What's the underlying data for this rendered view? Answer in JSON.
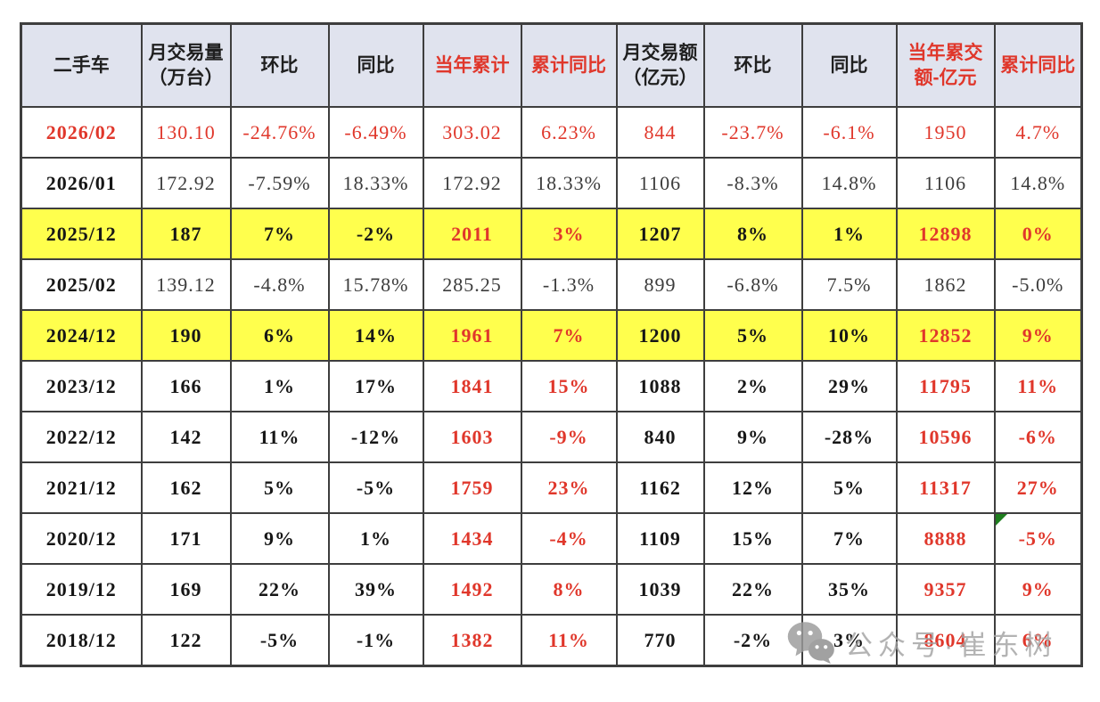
{
  "colors": {
    "red": "#e0372b",
    "highlight_yellow": "#ffff4d",
    "header_bg": "#e0e3ee",
    "border": "#3e3e3e",
    "marker_green": "#1e7e1e",
    "watermark_gray": "#a3a3a3"
  },
  "watermark": {
    "icon": "wechat-icon",
    "text": "公众号·崔东树"
  },
  "chart_data": {
    "type": "table",
    "columns": [
      "二手车",
      "月交易量\n（万台）",
      "环比",
      "同比",
      "当年累计",
      "累计同比",
      "月交易额\n（亿元）",
      "环比",
      "同比",
      "当年累交\n额-亿元",
      "累计同比"
    ],
    "red_header_indexes": [
      4,
      5,
      9,
      10
    ],
    "rows": [
      {
        "cells": [
          "2026/02",
          "130.10",
          "-24.76%",
          "-6.49%",
          "303.02",
          "6.23%",
          "844",
          "-23.7%",
          "-6.1%",
          "1950",
          "4.7%"
        ],
        "bg": "white",
        "bold": false,
        "red_cells": [
          0,
          1,
          2,
          3,
          4,
          5,
          6,
          7,
          8,
          9,
          10
        ]
      },
      {
        "cells": [
          "2026/01",
          "172.92",
          "-7.59%",
          "18.33%",
          "172.92",
          "18.33%",
          "1106",
          "-8.3%",
          "14.8%",
          "1106",
          "14.8%"
        ],
        "bg": "white",
        "bold": false,
        "red_cells": []
      },
      {
        "cells": [
          "2025/12",
          "187",
          "7%",
          "-2%",
          "2011",
          "3%",
          "1207",
          "8%",
          "1%",
          "12898",
          "0%"
        ],
        "bg": "yellow",
        "bold": true,
        "red_cells": [
          4,
          5,
          9,
          10
        ]
      },
      {
        "cells": [
          "2025/02",
          "139.12",
          "-4.8%",
          "15.78%",
          "285.25",
          "-1.3%",
          "899",
          "-6.8%",
          "7.5%",
          "1862",
          "-5.0%"
        ],
        "bg": "white",
        "bold": false,
        "red_cells": []
      },
      {
        "cells": [
          "2024/12",
          "190",
          "6%",
          "14%",
          "1961",
          "7%",
          "1200",
          "5%",
          "10%",
          "12852",
          "9%"
        ],
        "bg": "yellow",
        "bold": true,
        "red_cells": [
          4,
          5,
          9,
          10
        ]
      },
      {
        "cells": [
          "2023/12",
          "166",
          "1%",
          "17%",
          "1841",
          "15%",
          "1088",
          "2%",
          "29%",
          "11795",
          "11%"
        ],
        "bg": "white",
        "bold": true,
        "red_cells": [
          4,
          5,
          9,
          10
        ]
      },
      {
        "cells": [
          "2022/12",
          "142",
          "11%",
          "-12%",
          "1603",
          "-9%",
          "840",
          "9%",
          "-28%",
          "10596",
          "-6%"
        ],
        "bg": "white",
        "bold": true,
        "red_cells": [
          4,
          5,
          9,
          10
        ]
      },
      {
        "cells": [
          "2021/12",
          "162",
          "5%",
          "-5%",
          "1759",
          "23%",
          "1162",
          "12%",
          "5%",
          "11317",
          "27%"
        ],
        "bg": "white",
        "bold": true,
        "red_cells": [
          4,
          5,
          9,
          10
        ]
      },
      {
        "cells": [
          "2020/12",
          "171",
          "9%",
          "1%",
          "1434",
          "-4%",
          "1109",
          "15%",
          "7%",
          "8888",
          "-5%"
        ],
        "bg": "white",
        "bold": true,
        "red_cells": [
          4,
          5,
          9,
          10
        ],
        "note_marker_cell": 10
      },
      {
        "cells": [
          "2019/12",
          "169",
          "22%",
          "39%",
          "1492",
          "8%",
          "1039",
          "22%",
          "35%",
          "9357",
          "9%"
        ],
        "bg": "white",
        "bold": true,
        "red_cells": [
          4,
          5,
          9,
          10
        ]
      },
      {
        "cells": [
          "2018/12",
          "122",
          "-5%",
          "-1%",
          "1382",
          "11%",
          "770",
          "-2%",
          "3%",
          "8604",
          "6%"
        ],
        "bg": "white",
        "bold": true,
        "red_cells": [
          4,
          5,
          9,
          10
        ]
      }
    ]
  }
}
